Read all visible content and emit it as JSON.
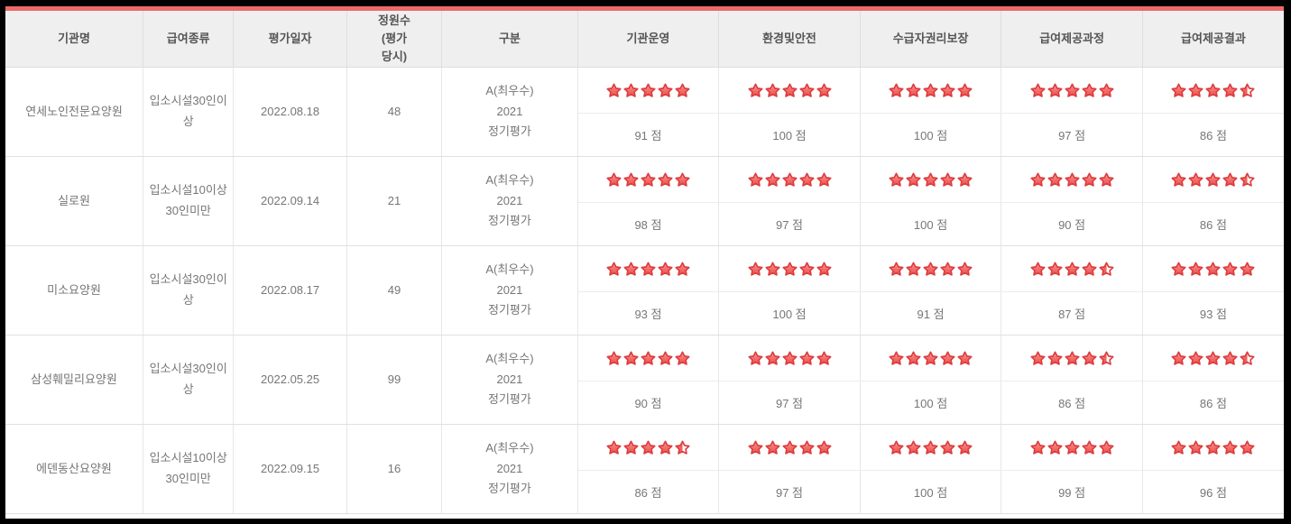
{
  "page": {
    "accent_color": "#ec6a6a",
    "frame_color": "#000000",
    "star_color": "#ee4f4f",
    "score_unit": "점"
  },
  "table": {
    "headers": [
      "기관명",
      "급여종류",
      "평가일자",
      "정원수\n(평가\n당시)",
      "구분",
      "기관운영",
      "환경및안전",
      "수급자권리보장",
      "급여제공과정",
      "급여제공결과"
    ],
    "rows": [
      {
        "institution": "연세노인전문요양원",
        "benefit_type": "입소시설30인이상",
        "eval_date": "2022.08.18",
        "capacity": "48",
        "category": "A(최우수)\n2021\n정기평가",
        "ratings": [
          {
            "stars": 5,
            "score": "91 점"
          },
          {
            "stars": 5,
            "score": "100 점"
          },
          {
            "stars": 5,
            "score": "100 점"
          },
          {
            "stars": 5,
            "score": "97 점"
          },
          {
            "stars": 4.5,
            "score": "86 점"
          }
        ]
      },
      {
        "institution": "실로원",
        "benefit_type": "입소시설10이상30인미만",
        "eval_date": "2022.09.14",
        "capacity": "21",
        "category": "A(최우수)\n2021\n정기평가",
        "ratings": [
          {
            "stars": 5,
            "score": "98 점"
          },
          {
            "stars": 5,
            "score": "97 점"
          },
          {
            "stars": 5,
            "score": "100 점"
          },
          {
            "stars": 5,
            "score": "90 점"
          },
          {
            "stars": 4.5,
            "score": "86 점"
          }
        ]
      },
      {
        "institution": "미소요양원",
        "benefit_type": "입소시설30인이상",
        "eval_date": "2022.08.17",
        "capacity": "49",
        "category": "A(최우수)\n2021\n정기평가",
        "ratings": [
          {
            "stars": 5,
            "score": "93 점"
          },
          {
            "stars": 5,
            "score": "100 점"
          },
          {
            "stars": 5,
            "score": "91 점"
          },
          {
            "stars": 4.5,
            "score": "87 점"
          },
          {
            "stars": 5,
            "score": "93 점"
          }
        ]
      },
      {
        "institution": "삼성훼밀리요양원",
        "benefit_type": "입소시설30인이상",
        "eval_date": "2022.05.25",
        "capacity": "99",
        "category": "A(최우수)\n2021\n정기평가",
        "ratings": [
          {
            "stars": 5,
            "score": "90 점"
          },
          {
            "stars": 5,
            "score": "97 점"
          },
          {
            "stars": 5,
            "score": "100 점"
          },
          {
            "stars": 4.5,
            "score": "86 점"
          },
          {
            "stars": 4.5,
            "score": "86 점"
          }
        ]
      },
      {
        "institution": "에덴동산요양원",
        "benefit_type": "입소시설10이상30인미만",
        "eval_date": "2022.09.15",
        "capacity": "16",
        "category": "A(최우수)\n2021\n정기평가",
        "ratings": [
          {
            "stars": 4.5,
            "score": "86 점"
          },
          {
            "stars": 5,
            "score": "97 점"
          },
          {
            "stars": 5,
            "score": "100 점"
          },
          {
            "stars": 5,
            "score": "99 점"
          },
          {
            "stars": 5,
            "score": "96 점"
          }
        ]
      }
    ]
  }
}
